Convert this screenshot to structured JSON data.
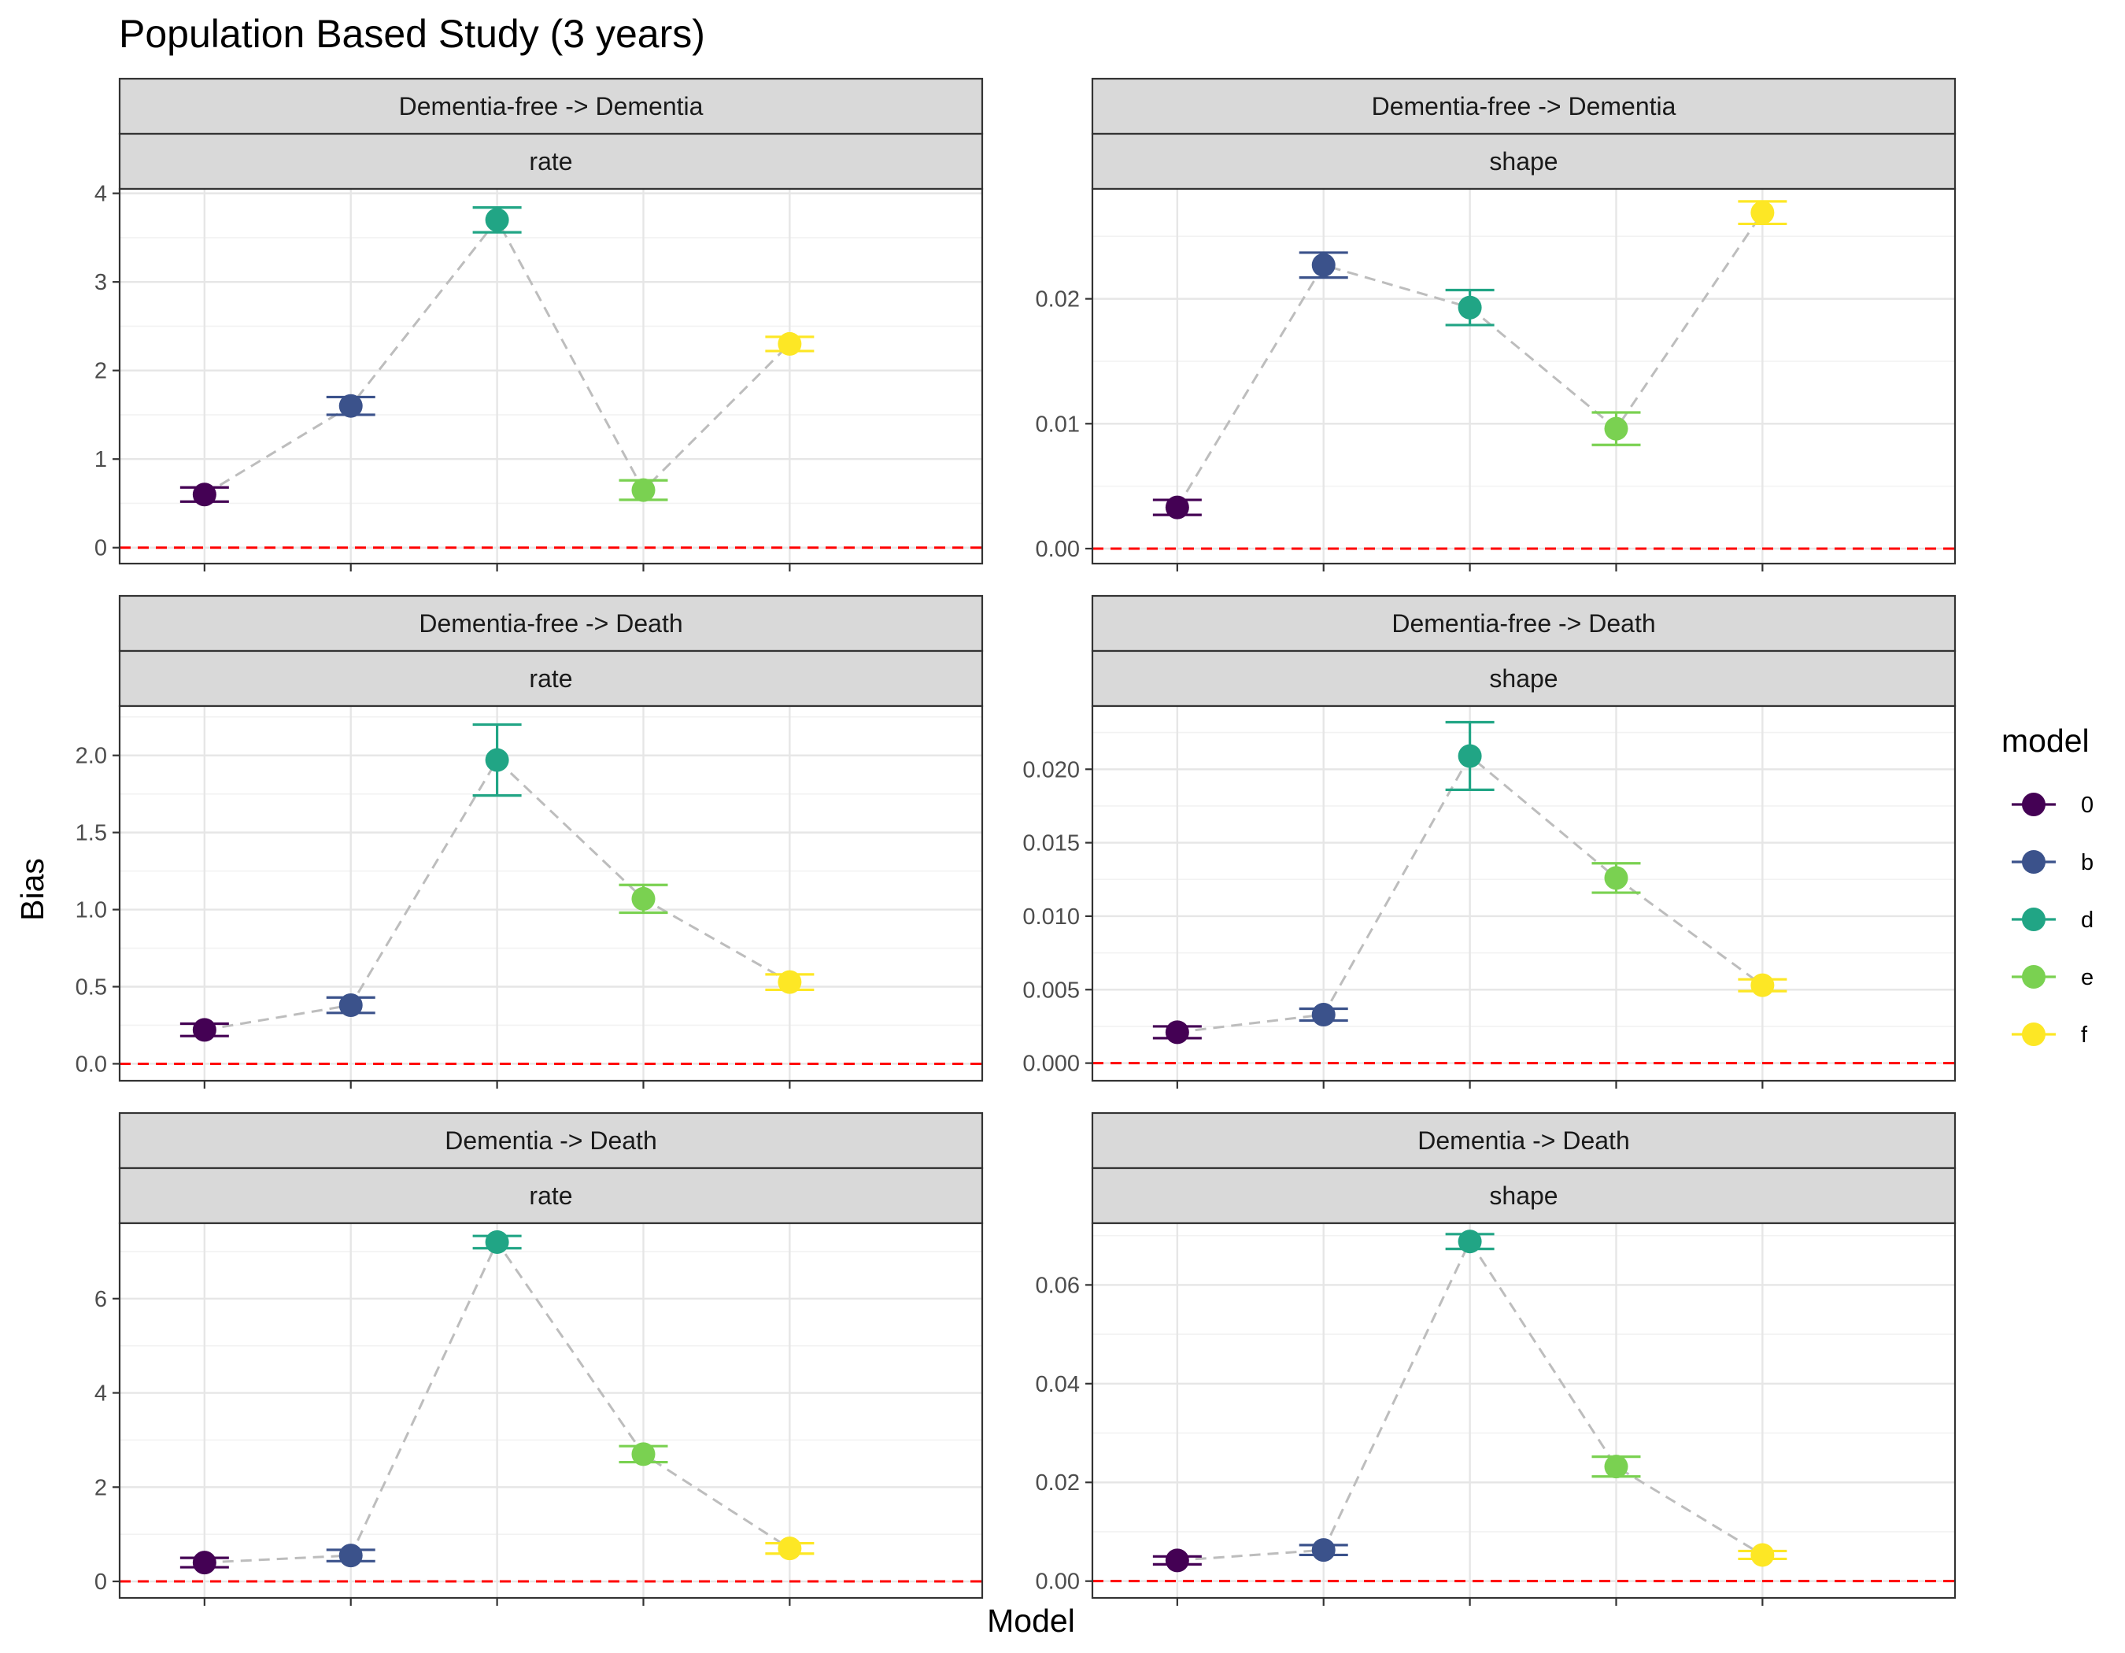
{
  "title": "Population Based Study (3 years)",
  "chart_data": {
    "type": "scatter",
    "title": "Population Based Study (3 years)",
    "xlabel": "Model",
    "ylabel": "Bias",
    "categories": [
      "0",
      "b",
      "d",
      "e",
      "f"
    ],
    "x_tick_labels_shown": false,
    "reference_line": {
      "y": 0,
      "color": "#ff0000",
      "style": "dashed"
    },
    "connector": {
      "color": "#bdbdbd",
      "style": "dashed"
    },
    "grid": true,
    "legend": {
      "title": "model",
      "position": "right",
      "entries": [
        {
          "label": "0",
          "color": "#440154"
        },
        {
          "label": "b",
          "color": "#3b528b"
        },
        {
          "label": "d",
          "color": "#21a585"
        },
        {
          "label": "e",
          "color": "#7ad151"
        },
        {
          "label": "f",
          "color": "#fde725"
        }
      ]
    },
    "panels": [
      {
        "strip_top": "Dementia-free -> Dementia",
        "strip_bottom": "rate",
        "ylim": [
          -0.18,
          4.05
        ],
        "y_major": [
          0,
          1,
          2,
          3,
          4
        ],
        "y_tick_labels": [
          "0",
          "1",
          "2",
          "3",
          "4"
        ],
        "y_minor": [
          0.5,
          1.5,
          2.5,
          3.5
        ],
        "values": [
          0.6,
          1.6,
          3.7,
          0.65,
          2.3
        ],
        "lower": [
          0.52,
          1.5,
          3.56,
          0.54,
          2.22
        ],
        "upper": [
          0.68,
          1.7,
          3.84,
          0.76,
          2.38
        ]
      },
      {
        "strip_top": "Dementia-free -> Dementia",
        "strip_bottom": "shape",
        "ylim": [
          -0.0012,
          0.0288
        ],
        "y_major": [
          0,
          0.01,
          0.02
        ],
        "y_tick_labels": [
          "0.00",
          "0.01",
          "0.02"
        ],
        "y_minor": [
          0.005,
          0.015,
          0.025
        ],
        "values": [
          0.0033,
          0.0227,
          0.0193,
          0.0096,
          0.0269
        ],
        "lower": [
          0.0027,
          0.0217,
          0.0179,
          0.0083,
          0.026
        ],
        "upper": [
          0.0039,
          0.0237,
          0.0207,
          0.0109,
          0.0278
        ]
      },
      {
        "strip_top": "Dementia-free -> Death",
        "strip_bottom": "rate",
        "ylim": [
          -0.11,
          2.32
        ],
        "y_major": [
          0,
          0.5,
          1,
          1.5,
          2
        ],
        "y_tick_labels": [
          "0.0",
          "0.5",
          "1.0",
          "1.5",
          "2.0"
        ],
        "y_minor": [
          0.25,
          0.75,
          1.25,
          1.75,
          2.25
        ],
        "values": [
          0.22,
          0.38,
          1.97,
          1.07,
          0.53
        ],
        "lower": [
          0.18,
          0.33,
          1.74,
          0.98,
          0.48
        ],
        "upper": [
          0.26,
          0.43,
          2.2,
          1.16,
          0.58
        ]
      },
      {
        "strip_top": "Dementia-free -> Death",
        "strip_bottom": "shape",
        "ylim": [
          -0.0012,
          0.0243
        ],
        "y_major": [
          0,
          0.005,
          0.01,
          0.015,
          0.02
        ],
        "y_tick_labels": [
          "0.000",
          "0.005",
          "0.010",
          "0.015",
          "0.020"
        ],
        "y_minor": [
          0.0025,
          0.0075,
          0.0125,
          0.0175,
          0.0225
        ],
        "values": [
          0.0021,
          0.0033,
          0.0209,
          0.0126,
          0.0053
        ],
        "lower": [
          0.0017,
          0.0029,
          0.0186,
          0.0116,
          0.0049
        ],
        "upper": [
          0.0025,
          0.0037,
          0.0232,
          0.0136,
          0.0057
        ]
      },
      {
        "strip_top": "Dementia -> Death",
        "strip_bottom": "rate",
        "ylim": [
          -0.35,
          7.6
        ],
        "y_major": [
          0,
          2,
          4,
          6
        ],
        "y_tick_labels": [
          "0",
          "2",
          "4",
          "6"
        ],
        "y_minor": [
          1,
          3,
          5,
          7
        ],
        "values": [
          0.4,
          0.55,
          7.2,
          2.7,
          0.7
        ],
        "lower": [
          0.3,
          0.43,
          7.07,
          2.53,
          0.59
        ],
        "upper": [
          0.5,
          0.67,
          7.33,
          2.87,
          0.81
        ]
      },
      {
        "strip_top": "Dementia -> Death",
        "strip_bottom": "shape",
        "ylim": [
          -0.0034,
          0.0725
        ],
        "y_major": [
          0,
          0.02,
          0.04,
          0.06
        ],
        "y_tick_labels": [
          "0.00",
          "0.02",
          "0.04",
          "0.06"
        ],
        "y_minor": [
          0.01,
          0.03,
          0.05,
          0.07
        ],
        "values": [
          0.0042,
          0.0063,
          0.0688,
          0.0232,
          0.0053
        ],
        "lower": [
          0.0034,
          0.0053,
          0.0673,
          0.0212,
          0.0045
        ],
        "upper": [
          0.005,
          0.0073,
          0.0703,
          0.0252,
          0.0061
        ]
      }
    ]
  }
}
